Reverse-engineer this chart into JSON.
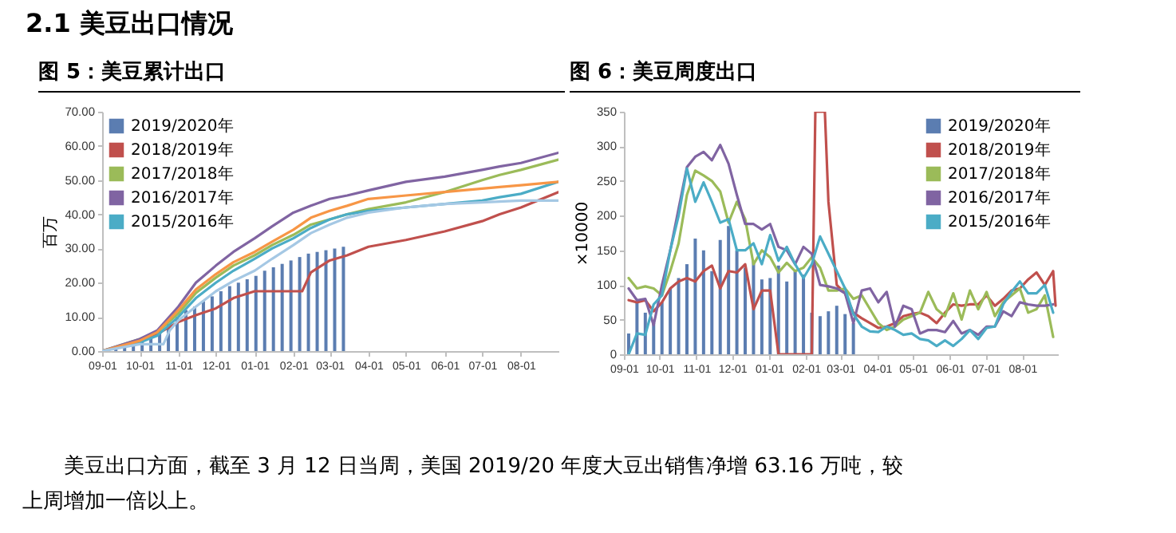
{
  "chart_data": [
    {
      "type": "line",
      "title": "图 5：美豆累计出口",
      "ylabel": "百万",
      "annotations": [
        "2.1 美豆出口情况"
      ],
      "legend": "top left",
      "grid": false,
      "x": [
        "2019-09-05",
        "2019-09-12",
        "2019-09-19",
        "2019-09-26",
        "2019-10-03",
        "2019-10-10",
        "2019-10-17",
        "2019-10-24",
        "2019-10-31",
        "2019-11-07",
        "2019-11-14",
        "2019-11-21",
        "2019-11-28",
        "2019-12-05",
        "2019-12-12",
        "2019-12-19",
        "2019-12-26",
        "2020-01-02",
        "2020-01-09",
        "2020-01-16",
        "2020-01-23",
        "2020-01-30",
        "2020-02-06",
        "2020-02-13",
        "2020-02-20",
        "2020-02-27",
        "2020-03-05",
        "2020-03-12"
      ],
      "xlim": [
        "2019-09-01",
        "2020-08-31"
      ],
      "xticks": [
        {
          "value": "2019-09-01",
          "label": "09-01"
        },
        {
          "value": "2019-10-01",
          "label": "10-01"
        },
        {
          "value": "2019-11-01",
          "label": "11-01"
        },
        {
          "value": "2019-12-01",
          "label": "12-01"
        },
        {
          "value": "2020-01-01",
          "label": "01-01"
        },
        {
          "value": "2020-02-01",
          "label": "02-01"
        },
        {
          "value": "2020-03-01",
          "label": "03-01"
        },
        {
          "value": "2020-04-01",
          "label": "04-01"
        },
        {
          "value": "2020-05-01",
          "label": "05-01"
        },
        {
          "value": "2020-06-01",
          "label": "06-01"
        },
        {
          "value": "2020-07-01",
          "label": "07-01"
        },
        {
          "value": "2020-08-01",
          "label": "08-01"
        }
      ],
      "ylim": [
        0,
        70
      ],
      "yticks": [
        {
          "value": 0,
          "label": "0.00"
        },
        {
          "value": 10,
          "label": "10.00"
        },
        {
          "value": 20,
          "label": "20.00"
        },
        {
          "value": 30,
          "label": "30.00"
        },
        {
          "value": 40,
          "label": "40.00"
        },
        {
          "value": 50,
          "label": "50.00"
        },
        {
          "value": 60,
          "label": "60.00"
        },
        {
          "value": 70,
          "label": "70.00"
        }
      ],
      "series": [
        {
          "name": "2019/2020年",
          "type": "bar",
          "color": "#5b7db1",
          "values": [
            0.5,
            1,
            1.5,
            2,
            3,
            4,
            6,
            8,
            10,
            12,
            13,
            14.5,
            16,
            17.5,
            19,
            20,
            21,
            22,
            23.5,
            24.5,
            25.5,
            26.5,
            27.5,
            28.5,
            29,
            29.5,
            30,
            30.5
          ]
        },
        {
          "name": "2018/2019年",
          "color": "#c0504d",
          "x": [
            "2019-09-01",
            "2019-10-01",
            "2019-10-15",
            "2019-11-01",
            "2019-11-15",
            "2019-12-01",
            "2019-12-15",
            "2020-01-01",
            "2020-01-15",
            "2020-02-01",
            "2020-02-08",
            "2020-02-15",
            "2020-03-01",
            "2020-03-15",
            "2020-04-01",
            "2020-05-01",
            "2020-06-01",
            "2020-07-01",
            "2020-07-15",
            "2020-08-01",
            "2020-08-31"
          ],
          "values": [
            0,
            3,
            5,
            8.5,
            10.5,
            12.5,
            15.5,
            17.5,
            17.5,
            17.5,
            17.5,
            23,
            26.5,
            28,
            30.5,
            32.5,
            35,
            38,
            40,
            42,
            46.5
          ]
        },
        {
          "name": "2017/2018年",
          "color": "#9bbb59",
          "x": [
            "2019-09-01",
            "2019-10-01",
            "2019-10-15",
            "2019-11-01",
            "2019-11-15",
            "2019-12-01",
            "2019-12-15",
            "2020-01-01",
            "2020-01-15",
            "2020-02-01",
            "2020-02-15",
            "2020-03-01",
            "2020-03-15",
            "2020-04-01",
            "2020-05-01",
            "2020-06-01",
            "2020-07-01",
            "2020-07-15",
            "2020-08-01",
            "2020-08-31"
          ],
          "values": [
            0,
            3.5,
            5.5,
            11,
            17,
            21.5,
            25,
            28,
            31,
            34,
            37,
            38.5,
            40,
            41.5,
            43.5,
            46.5,
            50,
            51.5,
            53,
            56
          ]
        },
        {
          "name": "2016/2017年",
          "color": "#8064a2",
          "x": [
            "2019-09-01",
            "2019-10-01",
            "2019-10-15",
            "2019-11-01",
            "2019-11-15",
            "2019-12-01",
            "2019-12-15",
            "2020-01-01",
            "2020-01-15",
            "2020-02-01",
            "2020-02-15",
            "2020-03-01",
            "2020-03-15",
            "2020-04-01",
            "2020-05-01",
            "2020-06-01",
            "2020-07-01",
            "2020-07-15",
            "2020-08-01",
            "2020-08-31"
          ],
          "values": [
            0,
            3.5,
            6,
            13,
            20,
            25,
            29,
            33,
            36.5,
            40.5,
            42.5,
            44.5,
            45.5,
            47,
            49.5,
            51,
            53,
            54,
            55,
            58
          ]
        },
        {
          "name": "2015/2016年",
          "color": "#4bacc6",
          "x": [
            "2019-09-01",
            "2019-10-01",
            "2019-10-15",
            "2019-11-01",
            "2019-11-15",
            "2019-12-01",
            "2019-12-15",
            "2020-01-01",
            "2020-01-15",
            "2020-02-01",
            "2020-02-15",
            "2020-03-01",
            "2020-03-15",
            "2020-04-01",
            "2020-05-01",
            "2020-06-01",
            "2020-07-01",
            "2020-07-15",
            "2020-08-01",
            "2020-08-31"
          ],
          "values": [
            0,
            2.5,
            4.5,
            10,
            15.5,
            20,
            23.5,
            27,
            30,
            33,
            36,
            38.5,
            40,
            41,
            42,
            43,
            44,
            45,
            46,
            49.5
          ]
        },
        {
          "color": "#f79646",
          "x": [
            "2019-09-01",
            "2019-10-01",
            "2019-10-15",
            "2019-11-01",
            "2019-11-15",
            "2019-12-01",
            "2019-12-15",
            "2020-01-01",
            "2020-01-15",
            "2020-02-01",
            "2020-02-15",
            "2020-03-01",
            "2020-03-15",
            "2020-04-01",
            "2020-05-01",
            "2020-06-01",
            "2020-07-01",
            "2020-07-15",
            "2020-08-01",
            "2020-08-31"
          ],
          "values": [
            0,
            3,
            5.5,
            12,
            18,
            22.5,
            26,
            29,
            32,
            35.5,
            39,
            41,
            42.5,
            44.5,
            45.5,
            46.5,
            47.5,
            48,
            48.5,
            49.5
          ]
        },
        {
          "color": "#a5c8e4",
          "x": [
            "2019-09-01",
            "2019-10-01",
            "2019-10-20",
            "2019-10-25",
            "2019-11-01",
            "2019-11-15",
            "2019-12-01",
            "2019-12-15",
            "2020-01-01",
            "2020-01-15",
            "2020-02-01",
            "2020-02-15",
            "2020-03-01",
            "2020-03-15",
            "2020-04-01",
            "2020-05-01",
            "2020-06-01",
            "2020-07-01",
            "2020-08-01",
            "2020-08-31"
          ],
          "values": [
            0,
            2,
            2,
            6,
            9,
            13,
            17.5,
            20.5,
            23.5,
            27,
            31,
            34.5,
            37,
            39,
            40.5,
            42,
            43,
            43.5,
            44,
            44
          ]
        }
      ]
    },
    {
      "type": "line",
      "title": "图 6：美豆周度出口",
      "ylabel": "×10000",
      "annotations": [
        "美豆出口方面，截至 3 月 12 日当周，美国 2019/20 年度大豆出销售净增 63.16 万吨，较上周增加一倍以上。"
      ],
      "legend": "top right",
      "grid": false,
      "x": [
        "2019-09-05",
        "2019-09-12",
        "2019-09-19",
        "2019-09-26",
        "2019-10-03",
        "2019-10-10",
        "2019-10-17",
        "2019-10-24",
        "2019-10-31",
        "2019-11-07",
        "2019-11-14",
        "2019-11-21",
        "2019-11-28",
        "2019-12-05",
        "2019-12-12",
        "2019-12-19",
        "2019-12-26",
        "2020-01-02",
        "2020-01-09",
        "2020-01-16",
        "2020-01-23",
        "2020-01-30",
        "2020-02-06",
        "2020-02-13",
        "2020-02-20",
        "2020-02-27",
        "2020-03-05",
        "2020-03-12",
        "2020-03-19",
        "2020-03-26",
        "2020-04-02",
        "2020-04-09",
        "2020-04-16",
        "2020-04-23",
        "2020-04-30",
        "2020-05-07",
        "2020-05-14",
        "2020-05-21",
        "2020-05-28",
        "2020-06-04",
        "2020-06-11",
        "2020-06-18",
        "2020-06-25",
        "2020-07-02",
        "2020-07-09",
        "2020-07-16",
        "2020-07-23",
        "2020-07-30",
        "2020-08-06",
        "2020-08-13",
        "2020-08-20",
        "2020-08-27"
      ],
      "xlim": [
        "2019-09-01",
        "2020-08-31"
      ],
      "xticks": [
        {
          "value": "2019-09-01",
          "label": "09-01"
        },
        {
          "value": "2019-10-01",
          "label": "10-01"
        },
        {
          "value": "2019-11-01",
          "label": "11-01"
        },
        {
          "value": "2019-12-01",
          "label": "12-01"
        },
        {
          "value": "2020-01-01",
          "label": "01-01"
        },
        {
          "value": "2020-02-01",
          "label": "02-01"
        },
        {
          "value": "2020-03-01",
          "label": "03-01"
        },
        {
          "value": "2020-04-01",
          "label": "04-01"
        },
        {
          "value": "2020-05-01",
          "label": "05-01"
        },
        {
          "value": "2020-06-01",
          "label": "06-01"
        },
        {
          "value": "2020-07-01",
          "label": "07-01"
        },
        {
          "value": "2020-08-01",
          "label": "08-01"
        }
      ],
      "ylim": [
        0,
        350
      ],
      "yticks": [
        0,
        50,
        100,
        150,
        200,
        250,
        300,
        350
      ],
      "series": [
        {
          "name": "2019/2020年",
          "type": "bar",
          "color": "#5b7db1",
          "values": [
            30,
            75,
            60,
            45,
            75,
            95,
            110,
            130,
            167,
            150,
            120,
            165,
            185,
            150,
            125,
            135,
            108,
            110,
            128,
            105,
            120,
            115,
            60,
            55,
            62,
            70,
            58,
            45,
            null,
            null,
            null,
            null,
            null,
            null,
            null,
            null,
            null,
            null,
            null,
            null,
            null,
            null,
            null,
            null,
            null,
            null,
            null,
            null,
            null,
            null,
            null,
            null
          ]
        },
        {
          "name": "2018/2019年",
          "color": "#c0504d",
          "x": [
            "2019-09-05",
            "2019-09-12",
            "2019-09-19",
            "2019-09-26",
            "2019-10-03",
            "2019-10-10",
            "2019-10-17",
            "2019-10-24",
            "2019-10-31",
            "2019-11-07",
            "2019-11-14",
            "2019-11-21",
            "2019-11-28",
            "2019-12-05",
            "2019-12-12",
            "2019-12-19",
            "2019-12-26",
            "2020-01-02",
            "2020-01-09",
            "2020-01-16",
            "2020-01-23",
            "2020-01-30",
            "2020-02-06",
            "2020-02-09",
            "2020-02-17",
            "2020-02-20",
            "2020-02-27",
            "2020-03-05",
            "2020-03-12",
            "2020-03-19",
            "2020-03-26",
            "2020-04-02",
            "2020-04-09",
            "2020-04-16",
            "2020-04-23",
            "2020-04-30",
            "2020-05-07",
            "2020-05-14",
            "2020-05-21",
            "2020-05-28",
            "2020-06-04",
            "2020-06-11",
            "2020-06-18",
            "2020-06-25",
            "2020-07-02",
            "2020-07-09",
            "2020-07-16",
            "2020-07-23",
            "2020-07-30",
            "2020-08-06",
            "2020-08-13",
            "2020-08-20",
            "2020-08-27",
            "2020-08-29"
          ],
          "values": [
            78,
            75,
            78,
            62,
            75,
            95,
            105,
            110,
            105,
            120,
            128,
            95,
            120,
            118,
            130,
            65,
            92,
            92,
            0,
            0,
            0,
            0,
            0,
            350,
            350,
            220,
            100,
            88,
            60,
            52,
            45,
            38,
            40,
            45,
            55,
            58,
            60,
            55,
            45,
            60,
            72,
            70,
            72,
            72,
            85,
            70,
            80,
            92,
            95,
            108,
            118,
            100,
            120,
            70
          ]
        },
        {
          "name": "2017/2018年",
          "color": "#9bbb59",
          "values": [
            110,
            95,
            98,
            95,
            85,
            120,
            160,
            230,
            265,
            258,
            250,
            235,
            190,
            220,
            195,
            130,
            150,
            140,
            118,
            132,
            120,
            125,
            140,
            125,
            92,
            92,
            95,
            80,
            85,
            65,
            45,
            35,
            40,
            50,
            55,
            60,
            90,
            65,
            55,
            88,
            50,
            92,
            65,
            90,
            55,
            75,
            85,
            95,
            60,
            65,
            85,
            25
          ]
        },
        {
          "name": "2016/2017年",
          "color": "#8064a2",
          "values": [
            95,
            78,
            80,
            42,
            100,
            150,
            210,
            270,
            285,
            292,
            280,
            302,
            275,
            230,
            188,
            188,
            180,
            188,
            155,
            150,
            130,
            155,
            145,
            100,
            98,
            95,
            88,
            45,
            92,
            95,
            75,
            90,
            40,
            70,
            65,
            30,
            35,
            35,
            32,
            48,
            30,
            35,
            28,
            40,
            40,
            62,
            55,
            75,
            72,
            70,
            70,
            72
          ]
        },
        {
          "name": "2015/2016年",
          "color": "#4bacc6",
          "values": [
            0,
            30,
            28,
            72,
            85,
            150,
            200,
            268,
            220,
            248,
            220,
            190,
            195,
            150,
            150,
            160,
            130,
            172,
            135,
            155,
            130,
            110,
            130,
            170,
            145,
            120,
            95,
            58,
            40,
            33,
            32,
            40,
            35,
            28,
            30,
            22,
            20,
            12,
            20,
            12,
            22,
            35,
            22,
            38,
            40,
            72,
            90,
            105,
            88,
            88,
            100,
            60
          ]
        }
      ]
    }
  ]
}
